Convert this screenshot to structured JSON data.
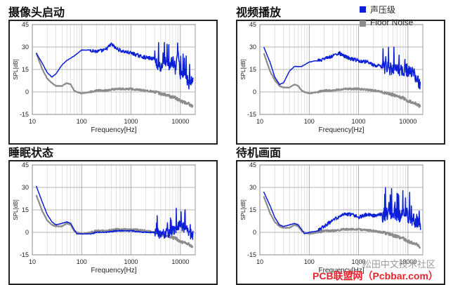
{
  "legend": {
    "items": [
      {
        "label": "声压级",
        "color": "#0a1fd6"
      },
      {
        "label": "Floor Noise",
        "color": "#8c8c8c"
      }
    ]
  },
  "watermark": {
    "wechat": "松田中文技术社区",
    "site": "PCB联盟网（Pcbbar.com）",
    "icon": "wechat-icon"
  },
  "chart_data": [
    {
      "type": "line",
      "title": "摄像头启动",
      "xlabel": "Frequency[Hz]",
      "ylabel": "SPL[dB]",
      "xscale": "log",
      "xlim": [
        10,
        20000
      ],
      "ylim": [
        -15,
        45
      ],
      "xticks": [
        "10",
        "100",
        "1000",
        "10000"
      ],
      "yticks": [
        "-15",
        "0",
        "15",
        "30",
        "45"
      ],
      "grid": true,
      "series": [
        {
          "name": "声压级",
          "color": "#0a1fd6",
          "noise": [
            0.3,
            2.4,
            9
          ],
          "x": [
            12,
            16,
            20,
            25,
            30,
            40,
            50,
            70,
            100,
            150,
            200,
            300,
            400,
            500,
            700,
            1000,
            1500,
            2000,
            3000,
            4000,
            5000,
            6000,
            7000,
            8000,
            9000,
            10000,
            12000,
            15000,
            18000
          ],
          "y": [
            26,
            19,
            13,
            10,
            12,
            18,
            21,
            24,
            28,
            28,
            27,
            28,
            32,
            29,
            27,
            26,
            24,
            23,
            22,
            17,
            20,
            18,
            21,
            15,
            25,
            10,
            15,
            5,
            10
          ]
        },
        {
          "name": "Floor Noise",
          "color": "#8c8c8c",
          "noise": [
            0.4,
            1.2,
            2.0
          ],
          "x": [
            12,
            16,
            20,
            25,
            30,
            40,
            50,
            60,
            70,
            80,
            100,
            150,
            200,
            300,
            500,
            1000,
            2000,
            3000,
            5000,
            8000,
            10000,
            15000,
            18000
          ],
          "y": [
            26,
            15,
            9,
            6,
            4,
            4,
            6,
            5,
            1,
            0,
            -1,
            0,
            1,
            1,
            2,
            2,
            1,
            0,
            -2,
            -4,
            -6,
            -8,
            -10
          ]
        }
      ]
    },
    {
      "type": "line",
      "title": "视频播放",
      "xlabel": "Frequency[Hz]",
      "ylabel": "SPL[dB]",
      "xscale": "log",
      "xlim": [
        10,
        20000
      ],
      "ylim": [
        -15,
        45
      ],
      "xticks": [
        "10",
        "100",
        "1000",
        "10000"
      ],
      "yticks": [
        "-15",
        "0",
        "15",
        "30",
        "45"
      ],
      "grid": true,
      "series": [
        {
          "name": "声压级",
          "color": "#0a1fd6",
          "noise": [
            0.3,
            2.4,
            10
          ],
          "x": [
            12,
            16,
            20,
            25,
            30,
            40,
            50,
            70,
            100,
            150,
            200,
            300,
            400,
            500,
            700,
            1000,
            1500,
            2000,
            3000,
            5000,
            7000,
            10000,
            15000,
            18000
          ],
          "y": [
            30,
            20,
            10,
            5,
            6,
            14,
            17,
            17,
            20,
            21,
            22,
            24,
            26,
            24,
            22,
            21,
            20,
            18,
            17,
            16,
            14,
            15,
            10,
            5
          ]
        },
        {
          "name": "Floor Noise",
          "color": "#8c8c8c",
          "noise": [
            0.4,
            1.2,
            2.0
          ],
          "x": [
            12,
            16,
            20,
            25,
            30,
            40,
            50,
            60,
            70,
            80,
            100,
            150,
            200,
            300,
            500,
            1000,
            2000,
            3000,
            5000,
            8000,
            10000,
            15000,
            18000
          ],
          "y": [
            26,
            14,
            8,
            4,
            3,
            3,
            5,
            4,
            1,
            0,
            -1,
            0,
            1,
            1,
            2,
            2,
            1,
            0,
            -2,
            -4,
            -6,
            -8,
            -10
          ]
        }
      ]
    },
    {
      "type": "line",
      "title": "睡眠状态",
      "xlabel": "Frequency[Hz]",
      "ylabel": "SPL[dB]",
      "xscale": "log",
      "xlim": [
        10,
        20000
      ],
      "ylim": [
        -15,
        45
      ],
      "xticks": [
        "10",
        "100",
        "1000",
        "10000"
      ],
      "yticks": [
        "-15",
        "0",
        "15",
        "30",
        "45"
      ],
      "grid": true,
      "series": [
        {
          "name": "声压级",
          "color": "#0a1fd6",
          "noise": [
            0.3,
            0.8,
            8
          ],
          "x": [
            12,
            16,
            20,
            25,
            30,
            40,
            50,
            60,
            70,
            80,
            100,
            150,
            200,
            300,
            500,
            1000,
            2000,
            3000,
            5000,
            7000,
            10000,
            15000,
            18000
          ],
          "y": [
            31,
            20,
            12,
            7,
            5,
            6,
            7,
            6,
            2,
            -1,
            -1,
            -1,
            0,
            0,
            1,
            1,
            0,
            0,
            -1,
            2,
            5,
            0,
            -2
          ]
        },
        {
          "name": "Floor Noise",
          "color": "#8c8c8c",
          "noise": [
            0.4,
            1.2,
            2.0
          ],
          "x": [
            12,
            16,
            20,
            25,
            30,
            40,
            50,
            60,
            70,
            80,
            100,
            150,
            200,
            300,
            500,
            1000,
            2000,
            3000,
            5000,
            8000,
            10000,
            15000,
            18000
          ],
          "y": [
            25,
            14,
            8,
            5,
            4,
            4,
            6,
            5,
            1,
            0,
            -1,
            0,
            1,
            1,
            2,
            2,
            1,
            0,
            -2,
            -4,
            -6,
            -8,
            -10
          ]
        }
      ]
    },
    {
      "type": "line",
      "title": "待机画面",
      "xlabel": "Frequency[Hz]",
      "ylabel": "SPL[dB]",
      "xscale": "log",
      "xlim": [
        10,
        20000
      ],
      "ylim": [
        -15,
        45
      ],
      "xticks": [
        "10",
        "100",
        "1000",
        "10000"
      ],
      "yticks": [
        "-15",
        "0",
        "15",
        "30",
        "45"
      ],
      "grid": true,
      "series": [
        {
          "name": "声压级",
          "color": "#0a1fd6",
          "noise": [
            0.3,
            2.4,
            11
          ],
          "x": [
            12,
            16,
            20,
            25,
            30,
            40,
            50,
            60,
            70,
            80,
            100,
            150,
            200,
            300,
            500,
            700,
            1000,
            1500,
            2000,
            3000,
            5000,
            7000,
            10000,
            15000,
            18000
          ],
          "y": [
            27,
            18,
            10,
            5,
            4,
            5,
            6,
            5,
            2,
            -1,
            0,
            1,
            4,
            8,
            12,
            12,
            10,
            12,
            11,
            12,
            14,
            12,
            12,
            8,
            5
          ]
        },
        {
          "name": "Floor Noise",
          "color": "#8c8c8c",
          "noise": [
            0.4,
            1.2,
            2.0
          ],
          "x": [
            12,
            16,
            20,
            25,
            30,
            40,
            50,
            60,
            70,
            80,
            100,
            150,
            200,
            300,
            500,
            1000,
            2000,
            3000,
            5000,
            8000,
            10000,
            15000,
            18000
          ],
          "y": [
            24,
            13,
            7,
            4,
            3,
            3,
            5,
            4,
            1,
            0,
            -1,
            0,
            1,
            1,
            2,
            2,
            1,
            0,
            -2,
            -4,
            -6,
            -8,
            -10
          ]
        }
      ]
    }
  ]
}
